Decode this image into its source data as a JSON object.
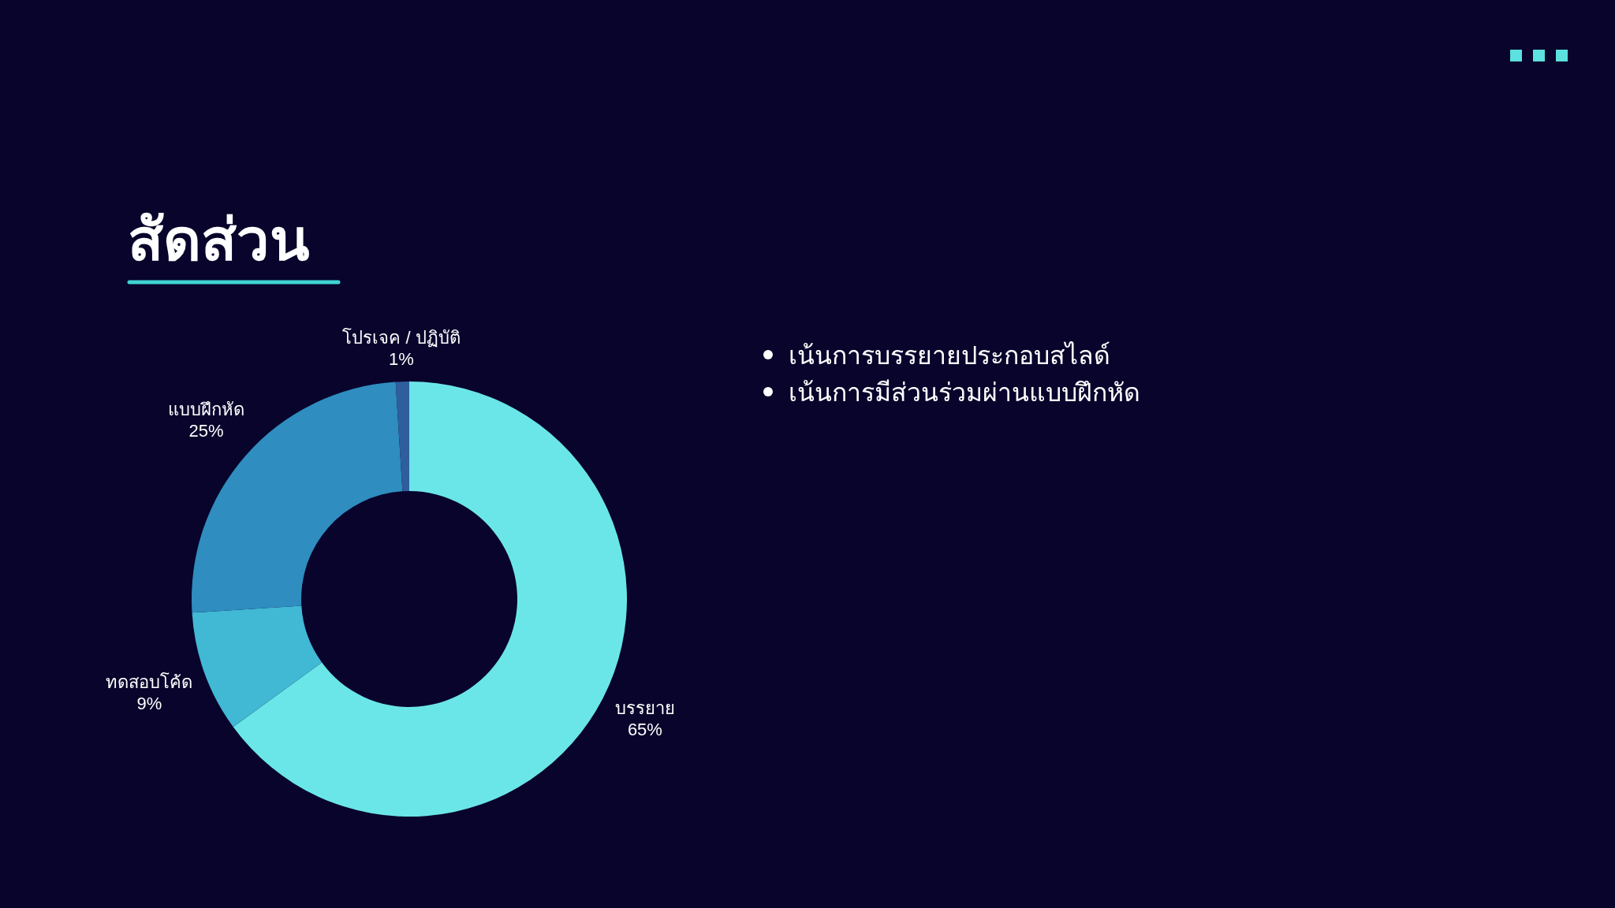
{
  "chart_data": {
    "type": "donut",
    "title": "สัดส่วน",
    "categories": [
      "บรรยาย",
      "ทดสอบโค้ด",
      "แบบฝึกหัด",
      "โปรเจค / ปฏิบัติ"
    ],
    "values": [
      65,
      9,
      25,
      1
    ],
    "value_labels": [
      "65%",
      "9%",
      "25%",
      "1%"
    ],
    "colors": [
      "#6be6e8",
      "#41b8d4",
      "#2f8dbf",
      "#2e5f9c"
    ],
    "annotations": [
      "เน้นการบรรยายประกอบสไลด์",
      "เน้นการมีส่วนร่วมผ่านแบบฝึกหัด"
    ]
  }
}
